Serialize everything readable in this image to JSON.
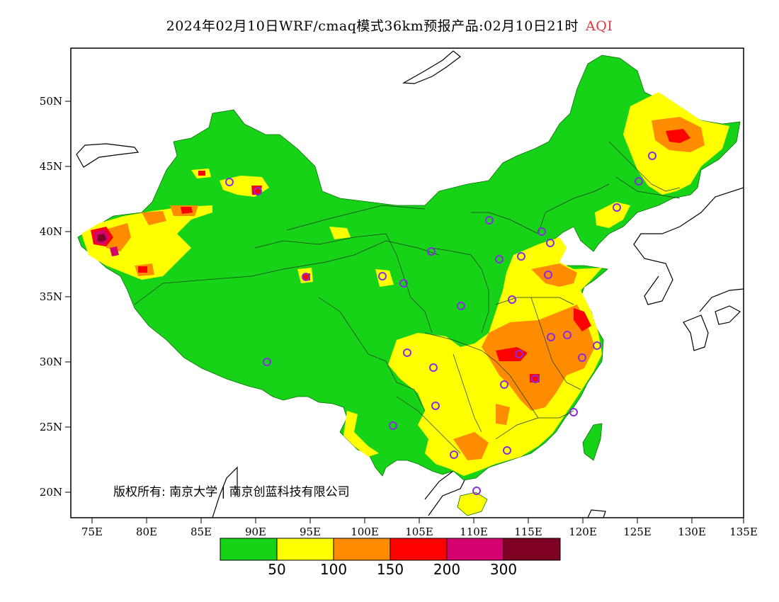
{
  "header": {
    "title": "2024年02月10日WRF/cmaq模式36km预报产品:02月10日21时",
    "product": "AQI",
    "product_color": "#e8323c"
  },
  "axes": {
    "lat_labels": [
      "50N",
      "45N",
      "40N",
      "35N",
      "30N",
      "25N",
      "20N"
    ],
    "lon_labels": [
      "75E",
      "80E",
      "85E",
      "90E",
      "95E",
      "100E",
      "105E",
      "110E",
      "115E",
      "120E",
      "125E",
      "130E",
      "135E"
    ]
  },
  "legend": {
    "colors": [
      "#17d317",
      "#ffff00",
      "#ff8c00",
      "#ff0000",
      "#d4006f",
      "#7e0023"
    ],
    "labels": [
      "50",
      "100",
      "150",
      "200",
      "300"
    ]
  },
  "copyright": "版权所有: 南京大学 | 南京创蓝科技有限公司",
  "colors": {
    "green": "#17d317",
    "yellow": "#ffff00",
    "orange": "#ff8c00",
    "red": "#ff0000",
    "purple": "#d4006f",
    "maroon": "#7e0023",
    "station_ring": "#8a2be2"
  }
}
